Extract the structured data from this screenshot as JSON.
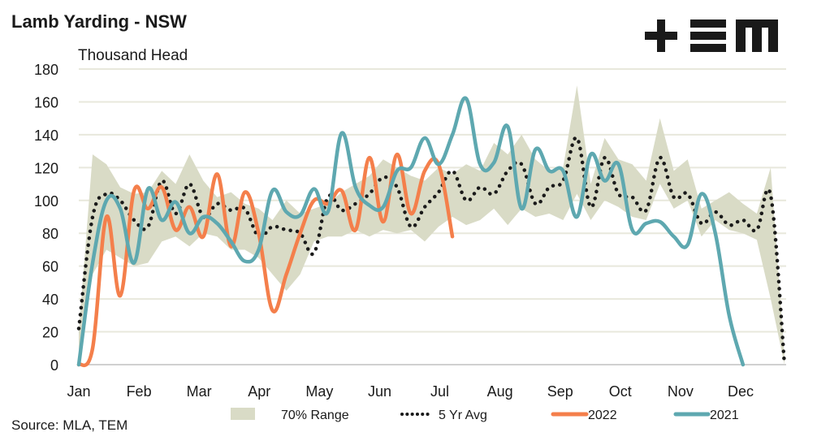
{
  "title": "Lamb Yarding - NSW",
  "source": "Source: MLA, TEM",
  "logo_text": "TEM",
  "colors": {
    "range": "#d9dbc6",
    "avg": "#1a1a1a",
    "y2022": "#f47f4b",
    "y2021": "#5ea8b0",
    "grid": "#e8e8dc",
    "axis": "#d0d0d0"
  },
  "chart_data": {
    "type": "line",
    "title": "Lamb Yarding - NSW",
    "ylabel": "Thousand Head",
    "xlabel": "",
    "ylim": [
      0,
      180
    ],
    "yticks": [
      0,
      20,
      40,
      60,
      80,
      100,
      120,
      140,
      160,
      180
    ],
    "xtick_labels": [
      "Jan",
      "Feb",
      "Mar",
      "Apr",
      "May",
      "Jun",
      "Jul",
      "Aug",
      "Sep",
      "Oct",
      "Nov",
      "Dec"
    ],
    "x_unit": "week of year (1-52)",
    "grid": true,
    "legend_position": "bottom",
    "legend": [
      "70% Range",
      "5 Yr Avg",
      "2022",
      "2021"
    ],
    "range_low": [
      0,
      55,
      70,
      65,
      60,
      62,
      75,
      78,
      72,
      80,
      78,
      70,
      70,
      65,
      55,
      45,
      55,
      75,
      78,
      78,
      82,
      78,
      82,
      80,
      82,
      75,
      84,
      90,
      85,
      88,
      95,
      85,
      95,
      90,
      92,
      88,
      104,
      88,
      100,
      96,
      90,
      88,
      110,
      95,
      100,
      78,
      88,
      82,
      80,
      76,
      40,
      0
    ],
    "range_high": [
      20,
      128,
      122,
      108,
      104,
      105,
      118,
      110,
      128,
      112,
      102,
      105,
      98,
      95,
      88,
      100,
      92,
      95,
      98,
      105,
      110,
      115,
      125,
      120,
      115,
      112,
      120,
      116,
      122,
      118,
      135,
      128,
      140,
      125,
      118,
      120,
      170,
      110,
      138,
      125,
      122,
      112,
      150,
      118,
      125,
      95,
      100,
      105,
      98,
      92,
      120,
      5
    ],
    "avg_5yr": [
      22,
      90,
      104,
      100,
      88,
      84,
      112,
      92,
      110,
      90,
      98,
      94,
      95,
      78,
      84,
      82,
      80,
      68,
      102,
      94,
      98,
      104,
      114,
      108,
      84,
      96,
      105,
      118,
      100,
      108,
      104,
      118,
      122,
      98,
      108,
      112,
      138,
      96,
      126,
      104,
      102,
      94,
      126,
      102,
      104,
      86,
      93,
      85,
      88,
      82,
      103,
      0
    ],
    "series": [
      {
        "name": "2022",
        "values": [
          0,
          10,
          90,
          42,
          106,
          95,
          108,
          82,
          96,
          78,
          116,
          72,
          105,
          80,
          33,
          55,
          80,
          100,
          98,
          106,
          82,
          126,
          87,
          128,
          92,
          118,
          122,
          78
        ]
      },
      {
        "name": "2021",
        "values": [
          0,
          62,
          100,
          95,
          62,
          107,
          88,
          99,
          80,
          90,
          86,
          75,
          63,
          70,
          106,
          93,
          91,
          107,
          93,
          141,
          108,
          97,
          96,
          118,
          120,
          138,
          122,
          140,
          162,
          122,
          123,
          145,
          95,
          131,
          118,
          118,
          90,
          128,
          112,
          122,
          82,
          86,
          87,
          78,
          73,
          104,
          80,
          30,
          0
        ]
      }
    ]
  }
}
